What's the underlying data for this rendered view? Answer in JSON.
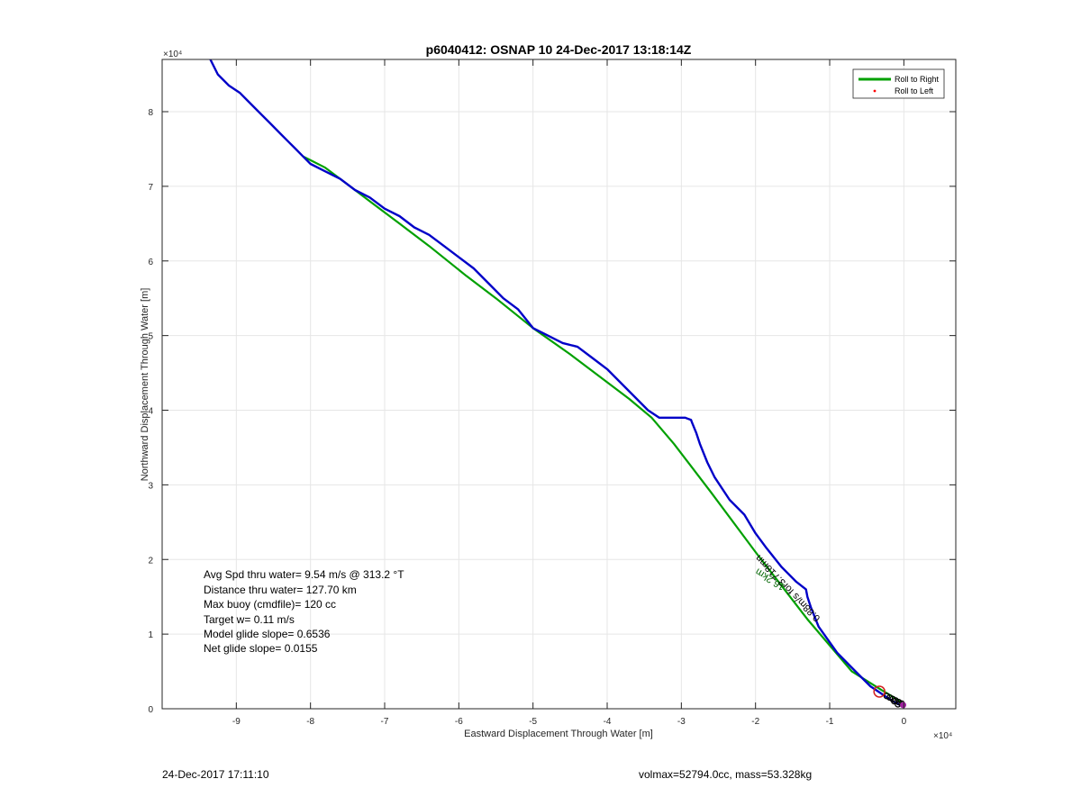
{
  "chart_data": {
    "type": "line",
    "title": "p6040412: OSNAP 10 24-Dec-2017 13:18:14Z",
    "xlabel": "Eastward Displacement Through Water [m]",
    "ylabel": "Northward Displacement Through Water [m]",
    "xlim": [
      -100000,
      7000
    ],
    "ylim": [
      0,
      87000
    ],
    "x_exponent_label": "×10⁴",
    "y_exponent_label": "×10⁴",
    "xticks": [
      -90000,
      -80000,
      -70000,
      -60000,
      -50000,
      -40000,
      -30000,
      -20000,
      -10000,
      0
    ],
    "xtick_labels": [
      "-9",
      "-8",
      "-7",
      "-6",
      "-5",
      "-4",
      "-3",
      "-2",
      "-1",
      "0"
    ],
    "yticks": [
      0,
      10000,
      20000,
      30000,
      40000,
      50000,
      60000,
      70000,
      80000
    ],
    "ytick_labels": [
      "0",
      "1",
      "2",
      "3",
      "4",
      "5",
      "6",
      "7",
      "8"
    ],
    "grid": true,
    "legend": {
      "placement": "top-right",
      "entries": [
        {
          "label": "Roll to Right",
          "color": "#00a000",
          "marker": "line"
        },
        {
          "label": "Roll to Left",
          "color": "#ff0000",
          "marker": "dot"
        }
      ]
    },
    "series": [
      {
        "color": "#0000c8",
        "x": [
          -500,
          -1500,
          -3000,
          -4500,
          -6500,
          -9000,
          -11500,
          -12500,
          -13000,
          -13200,
          -14500,
          -16500,
          -18500,
          -20000,
          -21500,
          -23500,
          -25500,
          -26500,
          -27500,
          -28000,
          -28500,
          -28700,
          -29500,
          -31000,
          -33000,
          -34500,
          -36500,
          -38500,
          -40000,
          -42000,
          -44000,
          -46000,
          -48000,
          -50000,
          -52000,
          -54000,
          -56000,
          -58000,
          -60000,
          -62000,
          -64000,
          -66000,
          -68000,
          -70000,
          -72000,
          -74000,
          -76000,
          -78000,
          -80000,
          -81000,
          -82000,
          -83000,
          -84000,
          -85500,
          -87000,
          -88500,
          -89500,
          -91000,
          -92500,
          -93500
        ],
        "y": [
          500,
          1000,
          2000,
          3000,
          5000,
          7500,
          11000,
          13500,
          15000,
          16000,
          17000,
          19000,
          21500,
          23500,
          26000,
          28000,
          31000,
          33000,
          35500,
          37000,
          38200,
          38700,
          39000,
          39000,
          39000,
          40000,
          42000,
          44000,
          45500,
          47000,
          48500,
          49000,
          50000,
          51000,
          53500,
          55000,
          57000,
          59000,
          60500,
          62000,
          63500,
          64500,
          66000,
          67000,
          68500,
          69500,
          71000,
          72000,
          73000,
          74000,
          75000,
          76000,
          77000,
          78500,
          80000,
          81500,
          82500,
          83500,
          85000,
          87000
        ]
      },
      {
        "name": "Roll to Right",
        "color": "#00a000",
        "x": [
          -100,
          -3000,
          -7000,
          -13000,
          -20000,
          -26000,
          -31000,
          -34000,
          -37000,
          -41000,
          -45000,
          -50000,
          -55000,
          -59000,
          -64000,
          -68000,
          -72000,
          -76000,
          -78000,
          -80000,
          -81000
        ],
        "y": [
          800,
          2500,
          5000,
          12000,
          21000,
          29000,
          35500,
          39000,
          41500,
          44500,
          47500,
          51000,
          55000,
          58000,
          62000,
          65000,
          68000,
          71000,
          72500,
          73500,
          74000
        ]
      }
    ],
    "annotations": [
      {
        "text": "Avg Spd thru water=  9.54 m/s @ 313.2 °T"
      },
      {
        "text": "Distance thru water= 127.70 km"
      },
      {
        "text": "Max buoy (cmdfile)= 120 cc"
      },
      {
        "text": "Target w= 0.11 m/s"
      },
      {
        "text": "Model glide slope= 0.6536"
      },
      {
        "text": "Net glide slope= 0.0155"
      }
    ],
    "rotated_labels": [
      {
        "text": "16.2km"
      },
      {
        "text": "0.88m/s for3.718mn"
      }
    ]
  },
  "footer": {
    "left": "24-Dec-2017 17:11:10",
    "right": "volmax=52794.0cc, mass=53.328kg"
  }
}
